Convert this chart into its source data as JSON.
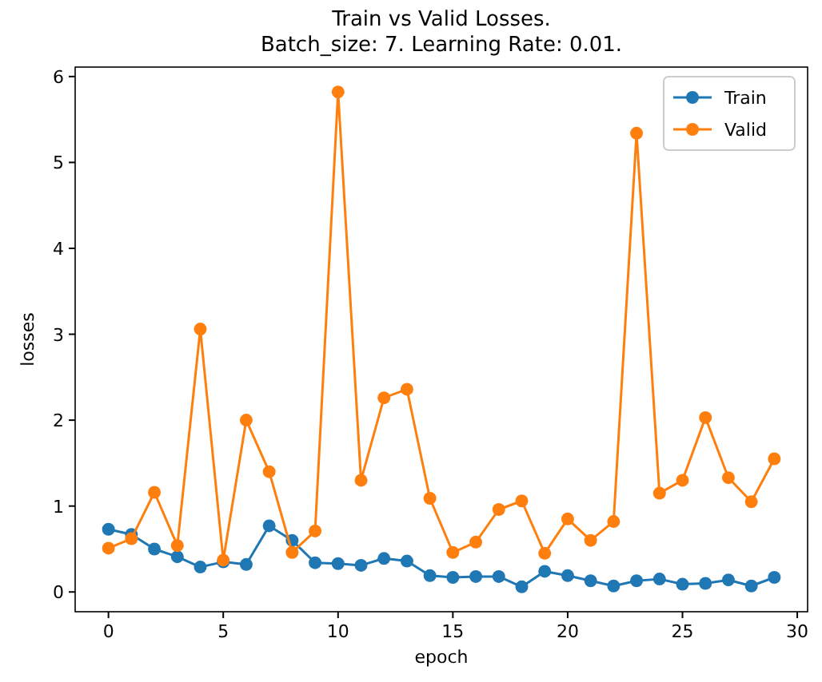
{
  "chart_data": {
    "type": "line",
    "title": "Train vs Valid Losses.\nBatch_size: 7. Learning Rate: 0.01.",
    "xlabel": "epoch",
    "ylabel": "losses",
    "x": [
      0,
      1,
      2,
      3,
      4,
      5,
      6,
      7,
      8,
      9,
      10,
      11,
      12,
      13,
      14,
      15,
      16,
      17,
      18,
      19,
      20,
      21,
      22,
      23,
      24,
      25,
      26,
      27,
      28,
      29
    ],
    "series": [
      {
        "name": "Train",
        "color": "#1f77b4",
        "values": [
          0.73,
          0.67,
          0.5,
          0.41,
          0.29,
          0.35,
          0.32,
          0.77,
          0.6,
          0.34,
          0.33,
          0.31,
          0.39,
          0.36,
          0.19,
          0.17,
          0.18,
          0.18,
          0.06,
          0.24,
          0.19,
          0.13,
          0.07,
          0.13,
          0.15,
          0.09,
          0.1,
          0.14,
          0.07,
          0.17
        ]
      },
      {
        "name": "Valid",
        "color": "#ff7f0e",
        "values": [
          0.51,
          0.62,
          1.16,
          0.54,
          3.06,
          0.37,
          2.0,
          1.4,
          0.46,
          0.71,
          5.82,
          1.3,
          2.26,
          2.36,
          1.09,
          0.46,
          0.58,
          0.96,
          1.06,
          0.45,
          0.85,
          0.6,
          0.82,
          5.34,
          1.15,
          1.3,
          2.03,
          1.33,
          1.05,
          1.55
        ]
      }
    ],
    "xlim": [
      -1.45,
      30.45
    ],
    "xticks": [
      0,
      5,
      10,
      15,
      20,
      25,
      30
    ],
    "ylim": [
      -0.23,
      6.11
    ],
    "yticks": [
      0,
      1,
      2,
      3,
      4,
      5,
      6
    ],
    "marker": "circle",
    "line_style": "solid",
    "legend": "top right",
    "grid": false
  }
}
